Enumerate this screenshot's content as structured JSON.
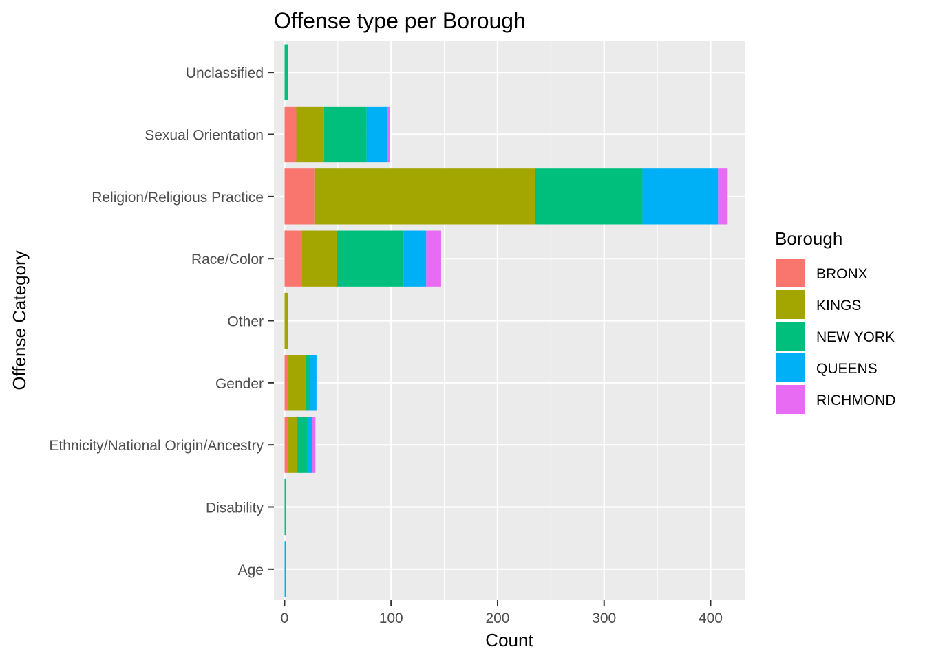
{
  "chart_data": {
    "type": "bar",
    "orientation": "horizontal",
    "stacked": true,
    "title": "Offense type per Borough",
    "xlabel": "Count",
    "ylabel": "Offense Category",
    "xlim": [
      -10,
      432
    ],
    "xticks": [
      0,
      100,
      200,
      300,
      400
    ],
    "grid": true,
    "legend": {
      "title": "Borough",
      "position": "right"
    },
    "categories": [
      "Age",
      "Disability",
      "Ethnicity/National Origin/Ancestry",
      "Gender",
      "Other",
      "Race/Color",
      "Religion/Religious Practice",
      "Sexual Orientation",
      "Unclassified"
    ],
    "series": [
      {
        "name": "BRONX",
        "color": "#F8766D",
        "values": [
          0,
          0,
          3,
          3,
          0,
          16,
          28,
          11,
          0
        ]
      },
      {
        "name": "KINGS",
        "color": "#A3A500",
        "values": [
          0,
          0,
          9,
          17,
          3,
          33,
          207,
          26,
          0
        ]
      },
      {
        "name": "NEW YORK",
        "color": "#00BF7D",
        "values": [
          0,
          1,
          9,
          4,
          0,
          63,
          101,
          40,
          3
        ]
      },
      {
        "name": "QUEENS",
        "color": "#00B0F6",
        "values": [
          1,
          0,
          5,
          6,
          0,
          21,
          71,
          19,
          0
        ]
      },
      {
        "name": "RICHMOND",
        "color": "#E76BF3",
        "values": [
          0,
          0,
          3,
          0,
          0,
          14,
          9,
          3,
          0
        ]
      }
    ]
  }
}
